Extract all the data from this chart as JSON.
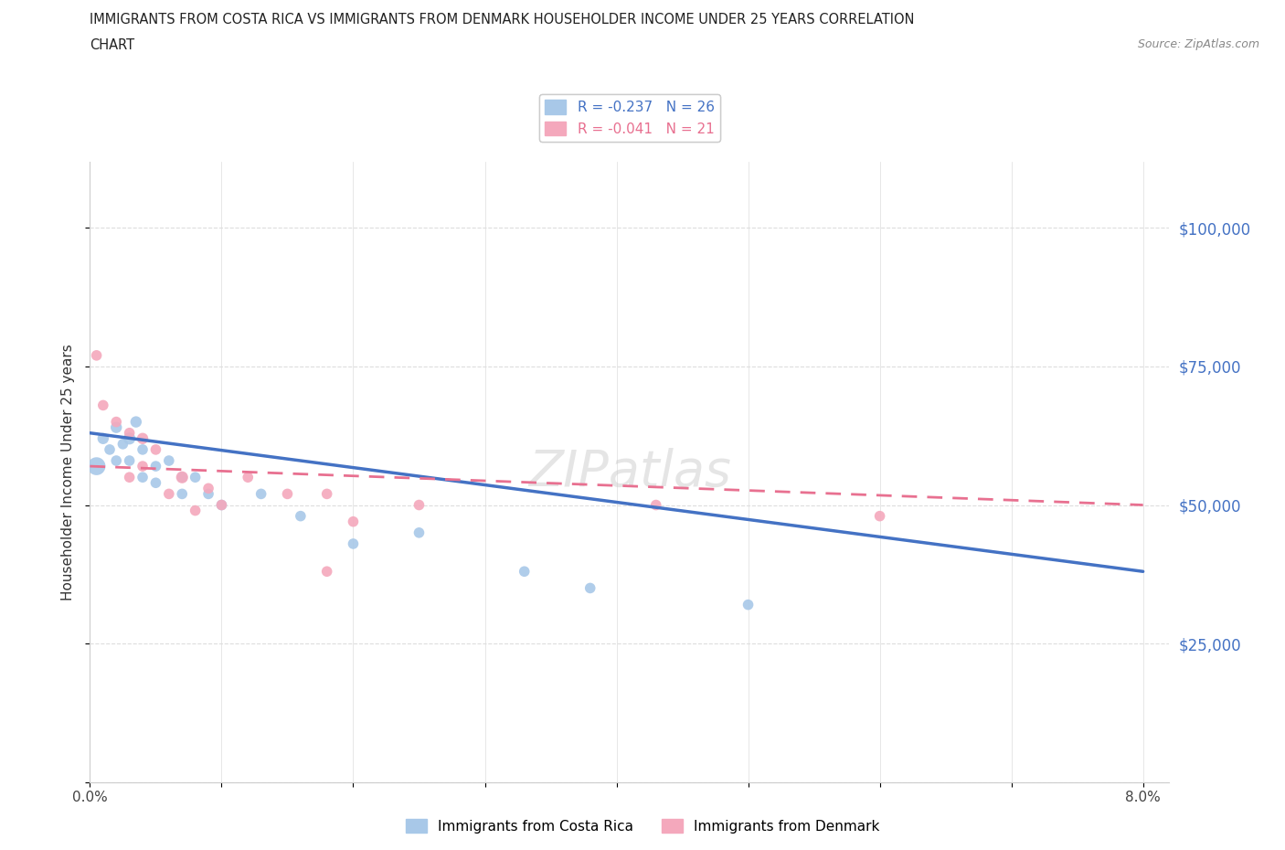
{
  "title_line1": "IMMIGRANTS FROM COSTA RICA VS IMMIGRANTS FROM DENMARK HOUSEHOLDER INCOME UNDER 25 YEARS CORRELATION",
  "title_line2": "CHART",
  "source_text": "Source: ZipAtlas.com",
  "ylabel": "Householder Income Under 25 years",
  "xlim": [
    0,
    0.082
  ],
  "ylim": [
    0,
    112000
  ],
  "yticks": [
    0,
    25000,
    50000,
    75000,
    100000
  ],
  "ytick_labels": [
    "",
    "$25,000",
    "$50,000",
    "$75,000",
    "$100,000"
  ],
  "xticks": [
    0.0,
    0.01,
    0.02,
    0.03,
    0.04,
    0.05,
    0.06,
    0.07,
    0.08
  ],
  "xtick_labels": [
    "0.0%",
    "",
    "",
    "",
    "",
    "",
    "",
    "",
    "8.0%"
  ],
  "legend_label1": "R = -0.237   N = 26",
  "legend_label2": "R = -0.041   N = 21",
  "legend_label3": "Immigrants from Costa Rica",
  "legend_label4": "Immigrants from Denmark",
  "color_blue": "#A8C8E8",
  "color_pink": "#F4A8BC",
  "color_blue_line": "#4472C4",
  "color_pink_line": "#E87090",
  "watermark": "ZIPatlas",
  "costa_rica_x": [
    0.0005,
    0.001,
    0.0015,
    0.002,
    0.002,
    0.0025,
    0.003,
    0.003,
    0.0035,
    0.004,
    0.004,
    0.005,
    0.005,
    0.006,
    0.007,
    0.007,
    0.008,
    0.009,
    0.01,
    0.013,
    0.016,
    0.02,
    0.025,
    0.033,
    0.038,
    0.05
  ],
  "costa_rica_y": [
    57000,
    62000,
    60000,
    64000,
    58000,
    61000,
    62000,
    58000,
    65000,
    60000,
    55000,
    57000,
    54000,
    58000,
    55000,
    52000,
    55000,
    52000,
    50000,
    52000,
    48000,
    43000,
    45000,
    38000,
    35000,
    32000
  ],
  "costa_rica_size": [
    200,
    80,
    70,
    80,
    70,
    70,
    90,
    70,
    80,
    70,
    70,
    70,
    70,
    70,
    70,
    70,
    70,
    70,
    70,
    70,
    70,
    70,
    70,
    70,
    70,
    70
  ],
  "denmark_x": [
    0.0005,
    0.001,
    0.002,
    0.003,
    0.003,
    0.004,
    0.004,
    0.005,
    0.006,
    0.007,
    0.008,
    0.009,
    0.01,
    0.012,
    0.015,
    0.018,
    0.02,
    0.025,
    0.043,
    0.06,
    0.018
  ],
  "denmark_y": [
    77000,
    68000,
    65000,
    63000,
    55000,
    62000,
    57000,
    60000,
    52000,
    55000,
    49000,
    53000,
    50000,
    55000,
    52000,
    52000,
    47000,
    50000,
    50000,
    48000,
    38000
  ],
  "denmark_size": [
    70,
    70,
    70,
    70,
    70,
    80,
    70,
    70,
    70,
    90,
    70,
    70,
    70,
    70,
    70,
    70,
    70,
    70,
    70,
    70,
    70
  ],
  "cr_line_x": [
    0.0,
    0.08
  ],
  "cr_line_y": [
    63000,
    38000
  ],
  "dk_line_x": [
    0.0,
    0.08
  ],
  "dk_line_y": [
    57000,
    50000
  ]
}
